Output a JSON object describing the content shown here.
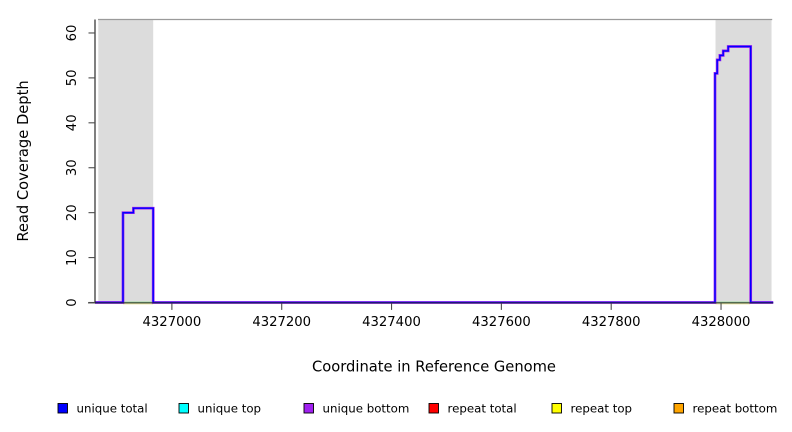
{
  "figure": {
    "background_color": "#ffffff",
    "frame_color": "#9a9a9a",
    "axis_color": "#2b2b2b",
    "tick_color": "#4d4d4d"
  },
  "chart_data": {
    "type": "line",
    "subtype": "step-coverage",
    "title": "",
    "xlabel": "Coordinate in Reference Genome",
    "ylabel": "Read Coverage Depth",
    "xlim": [
      4326860,
      4328095
    ],
    "ylim": [
      0,
      63
    ],
    "xticks": [
      4327000,
      4327200,
      4327400,
      4327600,
      4327800,
      4328000
    ],
    "yticks": [
      0,
      10,
      20,
      30,
      40,
      50,
      60
    ],
    "grid": false,
    "legend_position": "bottom",
    "shaded_regions": [
      {
        "name": "left-gray-region",
        "x0": 4326866,
        "x1": 4326966,
        "color": "#dcdcdc"
      },
      {
        "name": "right-gray-region",
        "x0": 4327990,
        "x1": 4328092,
        "color": "#dcdcdc"
      }
    ],
    "baseline_blend_color": "#8fd98f",
    "baseline_under_color": "#ede9a0",
    "series": [
      {
        "name": "unique total",
        "color": "#0000ff",
        "style": "step",
        "segments": [
          [
            [
              4326860,
              0
            ],
            [
              4326911,
              0
            ],
            [
              4326911,
              20
            ],
            [
              4326930,
              20
            ],
            [
              4326930,
              21
            ],
            [
              4326966,
              21
            ],
            [
              4326966,
              0
            ],
            [
              4327989,
              0
            ],
            [
              4327989,
              51
            ],
            [
              4327993,
              51
            ],
            [
              4327993,
              54
            ],
            [
              4327998,
              54
            ],
            [
              4327998,
              55
            ],
            [
              4328004,
              55
            ],
            [
              4328004,
              56
            ],
            [
              4328013,
              56
            ],
            [
              4328013,
              57
            ],
            [
              4328054,
              57
            ],
            [
              4328054,
              0
            ],
            [
              4328095,
              0
            ]
          ]
        ]
      },
      {
        "name": "unique bottom",
        "color": "#a020f0",
        "style": "step",
        "segments": [
          [
            [
              4326860,
              0
            ],
            [
              4326911,
              0
            ],
            [
              4326911,
              20
            ],
            [
              4326930,
              20
            ],
            [
              4326930,
              21
            ],
            [
              4326966,
              21
            ],
            [
              4326966,
              0
            ],
            [
              4327989,
              0
            ],
            [
              4327989,
              51
            ],
            [
              4327993,
              51
            ],
            [
              4327993,
              54
            ],
            [
              4327998,
              54
            ],
            [
              4327998,
              55
            ],
            [
              4328004,
              55
            ],
            [
              4328004,
              56
            ],
            [
              4328013,
              56
            ],
            [
              4328013,
              57
            ],
            [
              4328054,
              57
            ],
            [
              4328054,
              0
            ],
            [
              4328095,
              0
            ]
          ]
        ]
      },
      {
        "name": "unique top",
        "color": "#00ffff",
        "style": "baseline",
        "segments": [
          [
            [
              4326911,
              0
            ],
            [
              4326966,
              0
            ]
          ],
          [
            [
              4327990,
              0
            ],
            [
              4328053,
              0
            ]
          ]
        ]
      },
      {
        "name": "repeat top",
        "color": "#ffff00",
        "style": "baseline",
        "segments": [
          [
            [
              4326911,
              0
            ],
            [
              4326966,
              0
            ]
          ],
          [
            [
              4327990,
              0
            ],
            [
              4328053,
              0
            ]
          ]
        ]
      }
    ],
    "legend": {
      "entries": [
        {
          "label": "unique total",
          "color": "#0000ff"
        },
        {
          "label": "unique top",
          "color": "#00ffff"
        },
        {
          "label": "unique bottom",
          "color": "#a020f0"
        },
        {
          "label": "repeat total",
          "color": "#ff0000"
        },
        {
          "label": "repeat top",
          "color": "#ffff00"
        },
        {
          "label": "repeat bottom",
          "color": "#ffa500"
        }
      ]
    }
  }
}
